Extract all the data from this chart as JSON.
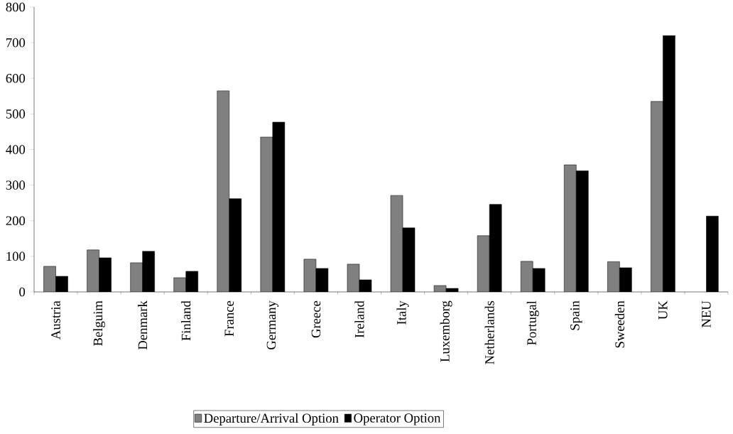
{
  "chart_data": {
    "type": "bar",
    "categories": [
      "Austria",
      "Belguim",
      "Denmark",
      "Finland",
      "France",
      "Germany",
      "Greece",
      "Ireland",
      "Italy",
      "Luxemborg",
      "Netherlands",
      "Portugal",
      "Spain",
      "Sweeden",
      "UK",
      "NEU"
    ],
    "series": [
      {
        "name": "Departure/Arrival Option",
        "color": "#808080",
        "values": [
          72,
          118,
          82,
          40,
          565,
          435,
          92,
          78,
          271,
          18,
          158,
          86,
          357,
          85,
          535,
          null
        ]
      },
      {
        "name": "Operator Option",
        "color": "#000000",
        "values": [
          44,
          96,
          114,
          58,
          262,
          477,
          66,
          34,
          180,
          10,
          246,
          66,
          340,
          68,
          720,
          213
        ]
      }
    ],
    "ylim": [
      0,
      800
    ],
    "yticks": [
      0,
      100,
      200,
      300,
      400,
      500,
      600,
      700,
      800
    ],
    "legend": "bottom"
  }
}
